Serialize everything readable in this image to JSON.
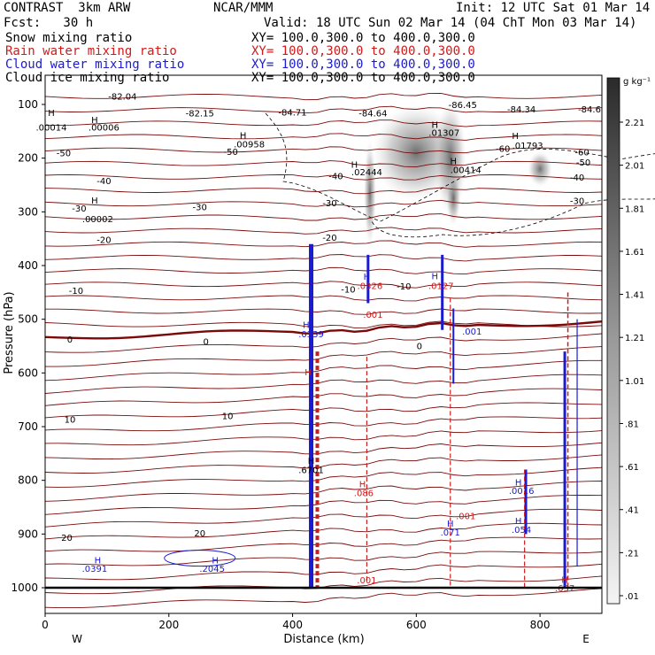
{
  "header": {
    "model": "CONTRAST  3km ARW",
    "center": "NCAR/MMM",
    "init": "Init: 12 UTC Sat 01 Mar 14",
    "fcst": "Fcst:   30 h",
    "valid": "Valid: 18 UTC Sun 02 Mar 14 (04 ChT Mon 03 Mar 14)"
  },
  "fields": [
    {
      "label": "Snow mixing ratio",
      "xy": "XY= 100.0,300.0 to 400.0,300.0",
      "color": "#000000"
    },
    {
      "label": "Rain water mixing ratio",
      "xy": "XY= 100.0,300.0 to 400.0,300.0",
      "color": "#d11a1a"
    },
    {
      "label": "Cloud water mixing ratio",
      "xy": "XY= 100.0,300.0 to 400.0,300.0",
      "color": "#1a1ad1"
    },
    {
      "label": "Cloud ice mixing ratio",
      "xy": "XY= 100.0,300.0 to 400.0,300.0",
      "color": "#000000"
    }
  ],
  "chart_data": {
    "type": "cross-section",
    "xlabel": "Distance (km)",
    "ylabel": "Pressure (hPa)",
    "xlim": [
      0,
      900
    ],
    "ylim": [
      1050,
      70
    ],
    "x_ticks": [
      "0",
      "200",
      "400",
      "600",
      "800"
    ],
    "y_ticks": [
      "100",
      "200",
      "300",
      "400",
      "500",
      "600",
      "700",
      "800",
      "900",
      "1000"
    ],
    "x_end_labels": [
      "W",
      "E"
    ],
    "colorbar": {
      "unit": "g kg⁻¹",
      "labels": [
        "2.21",
        "2.01",
        "1.81",
        "1.61",
        "1.41",
        "1.21",
        "1.01",
        ".81",
        ".61",
        ".41",
        ".21",
        ".01"
      ],
      "min": 0.01,
      "max": 2.21
    },
    "isotherm_labels": [
      {
        "text": "-82.04",
        "x": 125,
        "p": 84
      },
      {
        "text": "-82.15",
        "x": 250,
        "p": 116
      },
      {
        "text": "-84.71",
        "x": 400,
        "p": 114
      },
      {
        "text": "-84.64",
        "x": 530,
        "p": 116
      },
      {
        "text": "-86.45",
        "x": 675,
        "p": 100
      },
      {
        "text": "-84.34",
        "x": 770,
        "p": 108
      },
      {
        "text": "-84.6",
        "x": 880,
        "p": 108
      },
      {
        "text": "-60",
        "x": 740,
        "p": 182
      },
      {
        "text": "-60",
        "x": 868,
        "p": 188
      },
      {
        "text": "-50",
        "x": 30,
        "p": 190
      },
      {
        "text": "-50",
        "x": 300,
        "p": 187
      },
      {
        "text": "-50",
        "x": 870,
        "p": 207
      },
      {
        "text": "-40",
        "x": 95,
        "p": 242
      },
      {
        "text": "-40",
        "x": 470,
        "p": 233
      },
      {
        "text": "-40",
        "x": 860,
        "p": 235
      },
      {
        "text": "-30",
        "x": 55,
        "p": 293
      },
      {
        "text": "-30",
        "x": 250,
        "p": 290
      },
      {
        "text": "-30",
        "x": 460,
        "p": 283
      },
      {
        "text": "-30",
        "x": 860,
        "p": 279
      },
      {
        "text": "-20",
        "x": 95,
        "p": 351
      },
      {
        "text": "-20",
        "x": 460,
        "p": 347
      },
      {
        "text": "-10",
        "x": 50,
        "p": 446
      },
      {
        "text": "-10",
        "x": 490,
        "p": 444
      },
      {
        "text": "-10",
        "x": 580,
        "p": 438
      },
      {
        "text": "0",
        "x": 40,
        "p": 537
      },
      {
        "text": "0",
        "x": 260,
        "p": 541
      },
      {
        "text": "0",
        "x": 605,
        "p": 549
      },
      {
        "text": "10",
        "x": 40,
        "p": 686
      },
      {
        "text": "10",
        "x": 295,
        "p": 679
      },
      {
        "text": "20",
        "x": 35,
        "p": 906
      },
      {
        "text": "20",
        "x": 250,
        "p": 898
      }
    ],
    "extrema_labels": [
      {
        "text": "H",
        "x": 10,
        "p": 115,
        "color": "#000000"
      },
      {
        "text": ".00014",
        "x": 10,
        "p": 142,
        "color": "#000000"
      },
      {
        "text": "H",
        "x": 80,
        "p": 128,
        "color": "#000000"
      },
      {
        "text": ".00006",
        "x": 95,
        "p": 142,
        "color": "#000000"
      },
      {
        "text": "H",
        "x": 320,
        "p": 157,
        "color": "#000000"
      },
      {
        "text": ".00958",
        "x": 330,
        "p": 173,
        "color": "#000000"
      },
      {
        "text": "H",
        "x": 500,
        "p": 211,
        "color": "#000000"
      },
      {
        "text": ".02444",
        "x": 520,
        "p": 225,
        "color": "#000000"
      },
      {
        "text": "H",
        "x": 630,
        "p": 137,
        "color": "#000000"
      },
      {
        "text": ".01307",
        "x": 645,
        "p": 152,
        "color": "#000000"
      },
      {
        "text": "H",
        "x": 660,
        "p": 205,
        "color": "#000000"
      },
      {
        "text": ".00414",
        "x": 680,
        "p": 221,
        "color": "#000000"
      },
      {
        "text": "H",
        "x": 760,
        "p": 158,
        "color": "#000000"
      },
      {
        "text": ".01793",
        "x": 780,
        "p": 176,
        "color": "#000000"
      },
      {
        "text": "H",
        "x": 80,
        "p": 278,
        "color": "#000000"
      },
      {
        "text": ".00002",
        "x": 85,
        "p": 313,
        "color": "#000000"
      },
      {
        "text": "H",
        "x": 520,
        "p": 420,
        "color": "#1a1ad1"
      },
      {
        "text": "H",
        "x": 630,
        "p": 419,
        "color": "#1a1ad1"
      },
      {
        "text": "H",
        "x": 422,
        "p": 510,
        "color": "#1a1ad1"
      },
      {
        "text": ".0339",
        "x": 430,
        "p": 527,
        "color": "#1a1ad1"
      },
      {
        "text": ".0326",
        "x": 525,
        "p": 437,
        "color": "#d11a1a"
      },
      {
        "text": ".0127",
        "x": 640,
        "p": 437,
        "color": "#d11a1a"
      },
      {
        "text": ".001",
        "x": 530,
        "p": 491,
        "color": "#d11a1a"
      },
      {
        "text": ".001",
        "x": 690,
        "p": 522,
        "color": "#1a1ad1"
      },
      {
        "text": "H",
        "x": 425,
        "p": 598,
        "color": "#d11a1a"
      },
      {
        "text": "H",
        "x": 430,
        "p": 763,
        "color": "#000000"
      },
      {
        "text": ".6701",
        "x": 430,
        "p": 780,
        "color": "#000000"
      },
      {
        "text": "H",
        "x": 513,
        "p": 806,
        "color": "#d11a1a"
      },
      {
        "text": ".086",
        "x": 515,
        "p": 823,
        "color": "#d11a1a"
      },
      {
        "text": ".001",
        "x": 680,
        "p": 866,
        "color": "#d11a1a"
      },
      {
        "text": "H",
        "x": 655,
        "p": 880,
        "color": "#1a1ad1"
      },
      {
        "text": ".071",
        "x": 655,
        "p": 896,
        "color": "#1a1ad1"
      },
      {
        "text": "H",
        "x": 765,
        "p": 803,
        "color": "#1a1ad1"
      },
      {
        "text": ".0016",
        "x": 770,
        "p": 819,
        "color": "#1a1ad1"
      },
      {
        "text": "H",
        "x": 765,
        "p": 875,
        "color": "#1a1ad1"
      },
      {
        "text": ".054",
        "x": 770,
        "p": 891,
        "color": "#1a1ad1"
      },
      {
        "text": "H",
        "x": 85,
        "p": 948,
        "color": "#1a1ad1"
      },
      {
        "text": ".0391",
        "x": 80,
        "p": 964,
        "color": "#1a1ad1"
      },
      {
        "text": "H",
        "x": 275,
        "p": 948,
        "color": "#1a1ad1"
      },
      {
        "text": ".2045",
        "x": 270,
        "p": 964,
        "color": "#1a1ad1"
      },
      {
        "text": ".001",
        "x": 520,
        "p": 985,
        "color": "#d11a1a"
      },
      {
        "text": "H",
        "x": 840,
        "p": 984,
        "color": "#d11a1a"
      },
      {
        "text": ".637",
        "x": 840,
        "p": 1000,
        "color": "#d11a1a"
      }
    ]
  }
}
